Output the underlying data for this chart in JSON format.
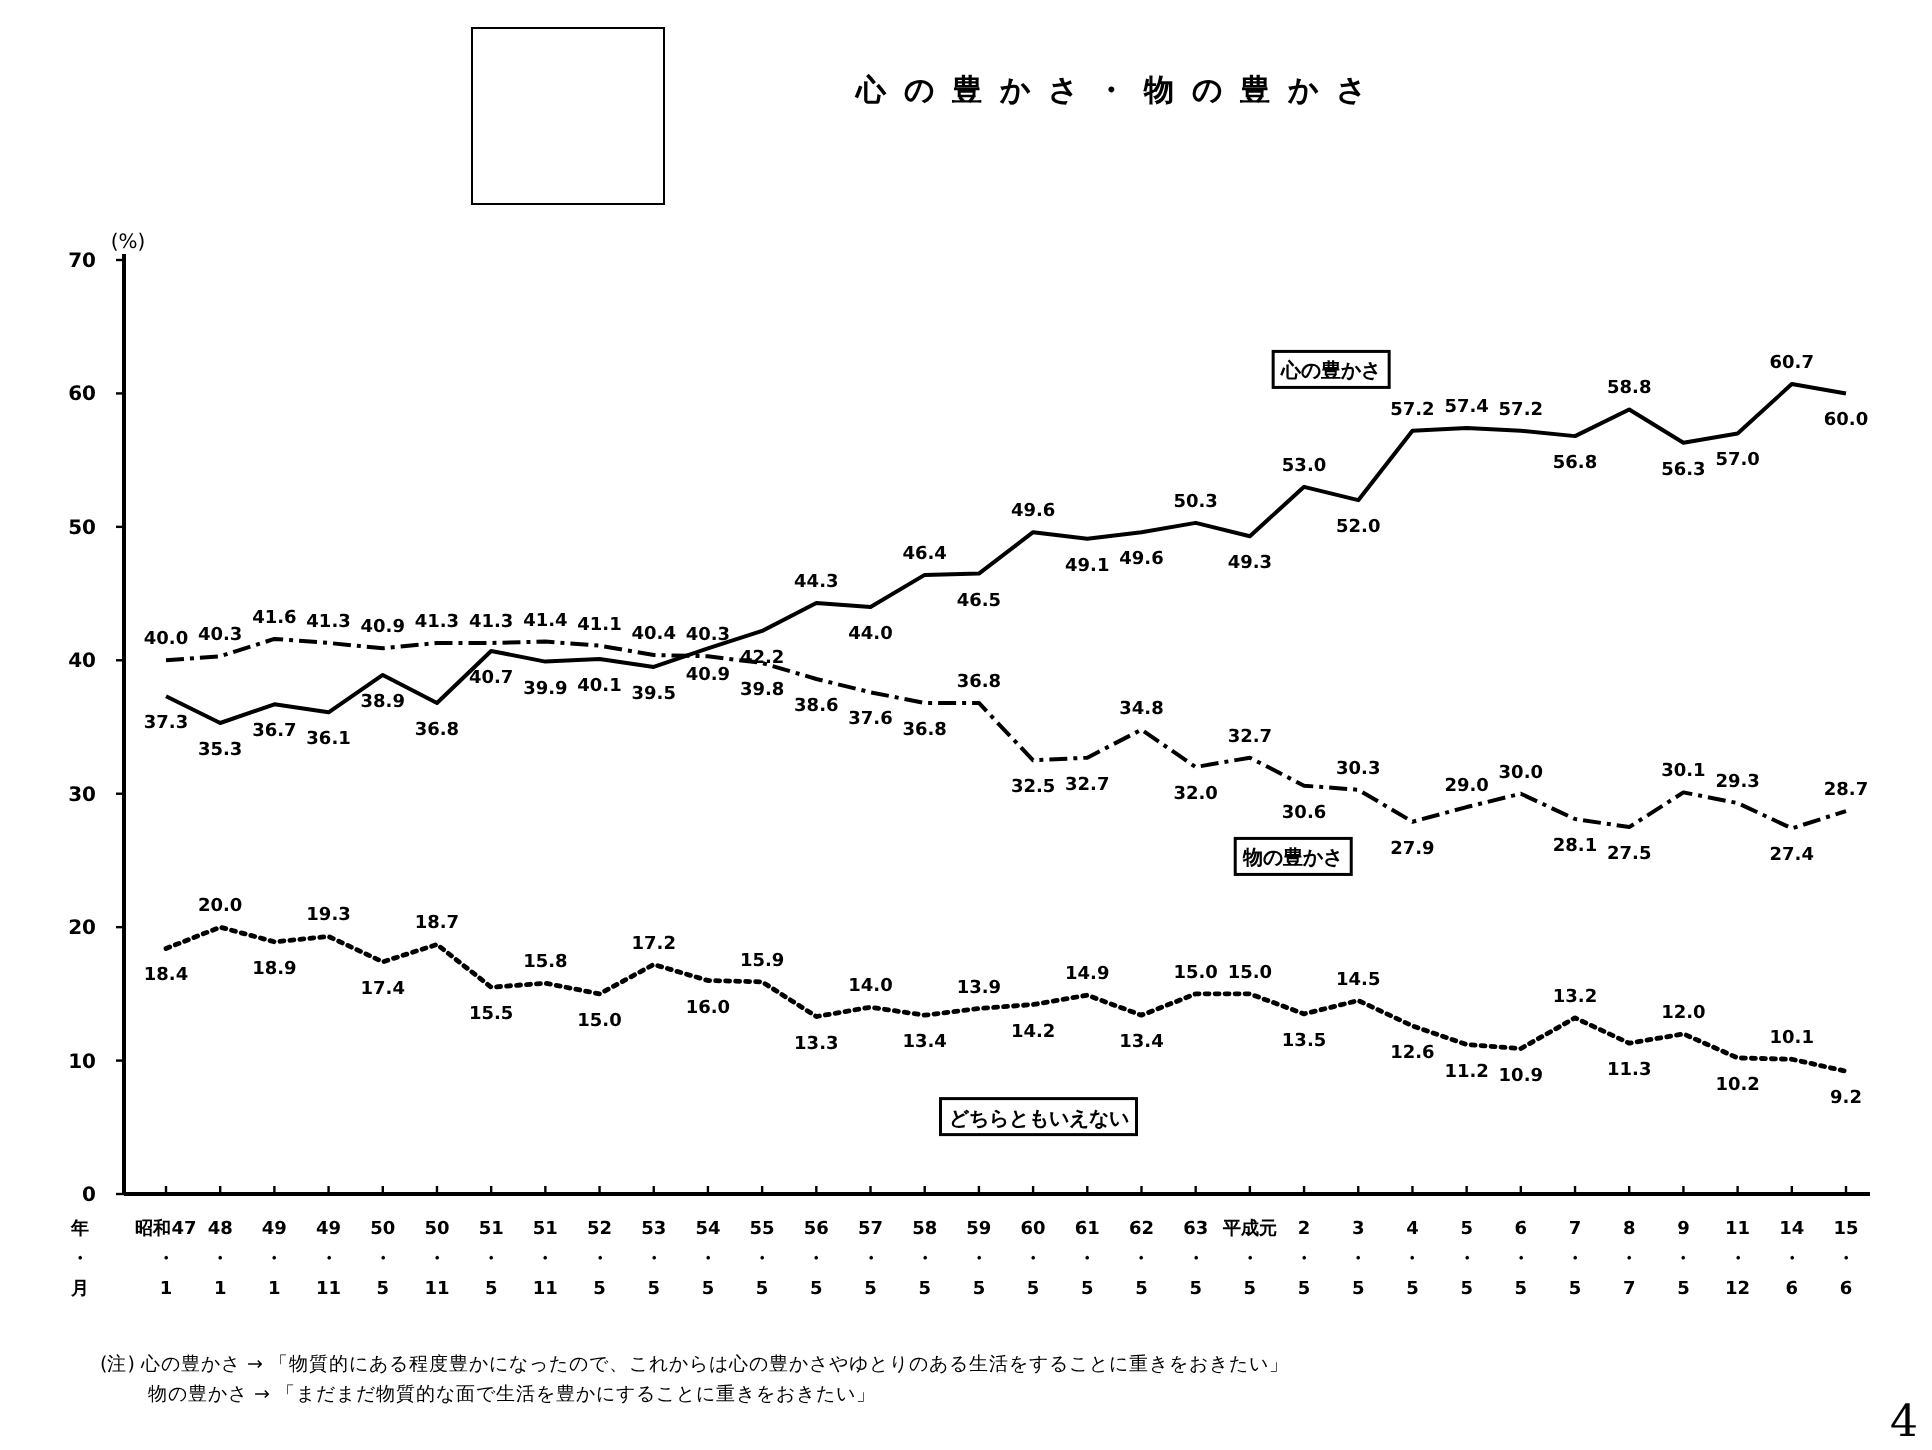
{
  "chart_data": {
    "type": "line",
    "title": "心の豊かさ・物の豊かさ",
    "ylabel": "(%)",
    "categories": [
      "昭和47・1",
      "48・1",
      "49・1",
      "49・11",
      "50・5",
      "50・11",
      "51・5",
      "51・11",
      "52・5",
      "53・5",
      "54・5",
      "55・5",
      "56・5",
      "57・5",
      "58・5",
      "59・5",
      "60・5",
      "61・5",
      "62・5",
      "63・5",
      "平成元・5",
      "2・5",
      "3・5",
      "4・5",
      "5・5",
      "6・5",
      "7・5",
      "8・7",
      "9・5",
      "11・12",
      "14・6",
      "15・6"
    ],
    "series": [
      {
        "name": "心の豊かさ",
        "color": "#000000",
        "line_style": "solid",
        "values": [
          37.3,
          35.3,
          36.7,
          36.1,
          38.9,
          36.8,
          40.7,
          39.9,
          40.1,
          39.5,
          40.9,
          42.2,
          44.3,
          44.0,
          46.4,
          46.5,
          49.6,
          49.1,
          49.6,
          50.3,
          49.3,
          53.0,
          52.0,
          57.2,
          57.4,
          57.2,
          56.8,
          58.8,
          56.3,
          57.0,
          60.7,
          60.0
        ],
        "value_labels": [
          "37.3",
          "35.3",
          "36.7",
          "36.1",
          "38.9",
          "36.8",
          "40.7",
          "39.9",
          "40.1",
          "39.5",
          "40.9",
          "42.2",
          "44.3",
          "44.0",
          "46.4",
          "46.5",
          "49.6",
          "49.1",
          "49.6",
          "50.3",
          "49.3",
          "53.0",
          "52.0",
          "57.2",
          "57.4",
          "57.2",
          "56.8",
          "58.8",
          "56.3",
          "57.0",
          "60.7",
          "60.0"
        ]
      },
      {
        "name": "物の豊かさ",
        "color": "#000000",
        "line_style": "dashed",
        "values": [
          40.0,
          40.3,
          41.6,
          41.3,
          40.9,
          41.3,
          41.3,
          41.4,
          41.1,
          40.4,
          40.3,
          39.8,
          38.6,
          37.6,
          36.8,
          36.8,
          32.5,
          32.7,
          34.8,
          32.0,
          32.7,
          30.6,
          30.3,
          27.9,
          29.0,
          30.0,
          28.1,
          27.5,
          30.1,
          29.3,
          27.4,
          28.7
        ],
        "value_labels": [
          "40.0",
          "40.3",
          "41.6",
          "41.3",
          "40.9",
          "41.3",
          "41.3",
          "41.4",
          "41.1",
          "40.4",
          "40.3",
          "39.8",
          "38.6",
          "37.6",
          "36.8",
          "36.8",
          "32.5",
          "32.7",
          "34.8",
          "32.0",
          "32.7",
          "30.6",
          "30.3",
          "27.9",
          "29.0",
          "30.0",
          "28.1",
          "27.5",
          "30.1",
          "29.3",
          "27.4",
          "28.7"
        ]
      },
      {
        "name": "どちらともいえない",
        "color": "#000000",
        "line_style": "dotted",
        "values": [
          18.4,
          20.0,
          18.9,
          19.3,
          17.4,
          18.7,
          15.5,
          15.8,
          15.0,
          17.2,
          16.0,
          15.9,
          13.3,
          14.0,
          13.4,
          13.9,
          14.2,
          14.9,
          13.4,
          15.0,
          15.0,
          13.5,
          14.5,
          12.6,
          11.2,
          10.9,
          13.2,
          11.3,
          12.0,
          10.2,
          10.1,
          9.2
        ],
        "value_labels": [
          "18.4",
          "20.0",
          "18.9",
          "19.3",
          "17.4",
          "18.7",
          "15.5",
          "15.8",
          "15.0",
          "17.2",
          "16.0",
          "15.9",
          "13.3",
          "14.0",
          "13.4",
          "13.9",
          "14.2",
          "14.9",
          "13.4",
          "15.0",
          "15.0",
          "13.5",
          "14.5",
          "12.6",
          "11.2",
          "10.9",
          "13.2",
          "11.3",
          "12.0",
          "10.2",
          "10.1",
          "9.2"
        ]
      }
    ],
    "ylim": [
      0,
      70
    ],
    "yticks": [
      0,
      10,
      20,
      30,
      40,
      50,
      60,
      70
    ],
    "marker": "none",
    "annotations": [
      "年・月",
      "(注) 心の豊かさ → 「物質的にある程度豊かになったので、これからは心の豊かさやゆとりのある生活をすることに重きをおきたい」",
      "物の豊かさ → 「まだまだ物質的な面で生活を豊かにすることに重きをおきたい」",
      "4"
    ]
  }
}
